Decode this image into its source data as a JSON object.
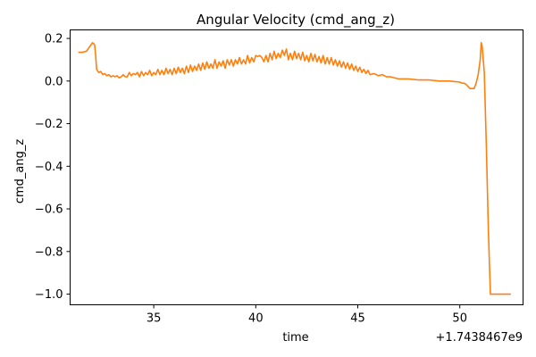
{
  "chart_data": {
    "type": "line",
    "title": "Angular Velocity (cmd_ang_z)",
    "xlabel": "time",
    "ylabel": "cmd_ang_z",
    "x_offset_label": "+1.7438467e9",
    "xlim": [
      30.9,
      53.1
    ],
    "ylim": [
      -1.05,
      0.24
    ],
    "xticks": [
      35,
      40,
      45,
      50
    ],
    "yticks": [
      0.2,
      0.0,
      -0.2,
      -0.4,
      -0.6,
      -0.8,
      -1.0
    ],
    "ytick_labels": [
      "0.2",
      "0.0",
      "−0.2",
      "−0.4",
      "−0.6",
      "−0.8",
      "−1.0"
    ],
    "grid": false,
    "legend": "none",
    "series": [
      {
        "color": "#ff7f0e",
        "x": [
          31.3,
          31.5,
          31.7,
          31.85,
          32.0,
          32.1,
          32.15,
          32.2,
          32.3,
          32.4,
          32.5,
          32.6,
          32.7,
          32.8,
          32.9,
          33.0,
          33.1,
          33.2,
          33.3,
          33.4,
          33.5,
          33.6,
          33.7,
          33.8,
          33.9,
          34.0,
          34.1,
          34.2,
          34.3,
          34.4,
          34.5,
          34.6,
          34.7,
          34.8,
          34.9,
          35.0,
          35.1,
          35.2,
          35.3,
          35.4,
          35.5,
          35.6,
          35.7,
          35.8,
          35.9,
          36.0,
          36.1,
          36.2,
          36.3,
          36.4,
          36.5,
          36.6,
          36.7,
          36.8,
          36.9,
          37.0,
          37.1,
          37.2,
          37.3,
          37.4,
          37.5,
          37.6,
          37.7,
          37.8,
          37.9,
          38.0,
          38.1,
          38.2,
          38.3,
          38.4,
          38.5,
          38.6,
          38.7,
          38.8,
          38.9,
          39.0,
          39.1,
          39.2,
          39.3,
          39.4,
          39.5,
          39.6,
          39.7,
          39.8,
          39.9,
          40.0,
          40.1,
          40.2,
          40.3,
          40.4,
          40.5,
          40.6,
          40.7,
          40.8,
          40.9,
          41.0,
          41.1,
          41.2,
          41.3,
          41.4,
          41.5,
          41.6,
          41.7,
          41.8,
          41.9,
          42.0,
          42.1,
          42.2,
          42.3,
          42.4,
          42.5,
          42.6,
          42.7,
          42.8,
          42.9,
          43.0,
          43.1,
          43.2,
          43.3,
          43.4,
          43.5,
          43.6,
          43.7,
          43.8,
          43.9,
          44.0,
          44.1,
          44.2,
          44.3,
          44.4,
          44.5,
          44.6,
          44.7,
          44.8,
          44.9,
          45.0,
          45.1,
          45.2,
          45.3,
          45.4,
          45.5,
          45.6,
          45.8,
          46.0,
          46.2,
          46.4,
          46.6,
          46.8,
          47.0,
          47.5,
          48.0,
          48.5,
          49.0,
          49.5,
          50.0,
          50.1,
          50.2,
          50.3,
          50.5,
          50.7,
          50.8,
          50.9,
          51.0,
          51.05,
          51.1,
          51.15,
          51.2,
          51.3,
          51.4,
          51.5,
          51.6,
          51.7,
          52.0,
          52.3,
          52.5
        ],
        "y": [
          0.135,
          0.135,
          0.14,
          0.16,
          0.18,
          0.17,
          0.12,
          0.055,
          0.04,
          0.045,
          0.03,
          0.035,
          0.025,
          0.03,
          0.02,
          0.025,
          0.02,
          0.025,
          0.015,
          0.02,
          0.03,
          0.02,
          0.02,
          0.04,
          0.025,
          0.035,
          0.03,
          0.04,
          0.02,
          0.045,
          0.025,
          0.04,
          0.03,
          0.05,
          0.025,
          0.04,
          0.03,
          0.055,
          0.03,
          0.05,
          0.03,
          0.06,
          0.035,
          0.055,
          0.03,
          0.06,
          0.035,
          0.065,
          0.04,
          0.06,
          0.035,
          0.07,
          0.04,
          0.075,
          0.045,
          0.07,
          0.05,
          0.08,
          0.05,
          0.085,
          0.055,
          0.09,
          0.06,
          0.08,
          0.06,
          0.1,
          0.06,
          0.09,
          0.07,
          0.095,
          0.06,
          0.1,
          0.075,
          0.1,
          0.07,
          0.1,
          0.08,
          0.11,
          0.08,
          0.1,
          0.08,
          0.12,
          0.085,
          0.11,
          0.09,
          0.12,
          0.115,
          0.12,
          0.11,
          0.09,
          0.12,
          0.09,
          0.13,
          0.1,
          0.14,
          0.105,
          0.13,
          0.11,
          0.145,
          0.12,
          0.15,
          0.1,
          0.13,
          0.1,
          0.14,
          0.105,
          0.13,
          0.1,
          0.135,
          0.095,
          0.12,
          0.09,
          0.13,
          0.095,
          0.125,
          0.09,
          0.115,
          0.085,
          0.12,
          0.08,
          0.11,
          0.08,
          0.11,
          0.075,
          0.1,
          0.07,
          0.095,
          0.065,
          0.09,
          0.06,
          0.085,
          0.055,
          0.08,
          0.05,
          0.07,
          0.045,
          0.065,
          0.04,
          0.055,
          0.035,
          0.05,
          0.03,
          0.035,
          0.025,
          0.03,
          0.02,
          0.02,
          0.015,
          0.01,
          0.01,
          0.005,
          0.005,
          0.0,
          0.0,
          -0.005,
          -0.01,
          -0.01,
          -0.015,
          -0.035,
          -0.035,
          -0.01,
          0.03,
          0.1,
          0.18,
          0.16,
          0.1,
          0.04,
          -0.3,
          -0.7,
          -1.0,
          -1.0,
          -1.0,
          -1.0,
          -1.0,
          -1.0
        ]
      }
    ]
  }
}
